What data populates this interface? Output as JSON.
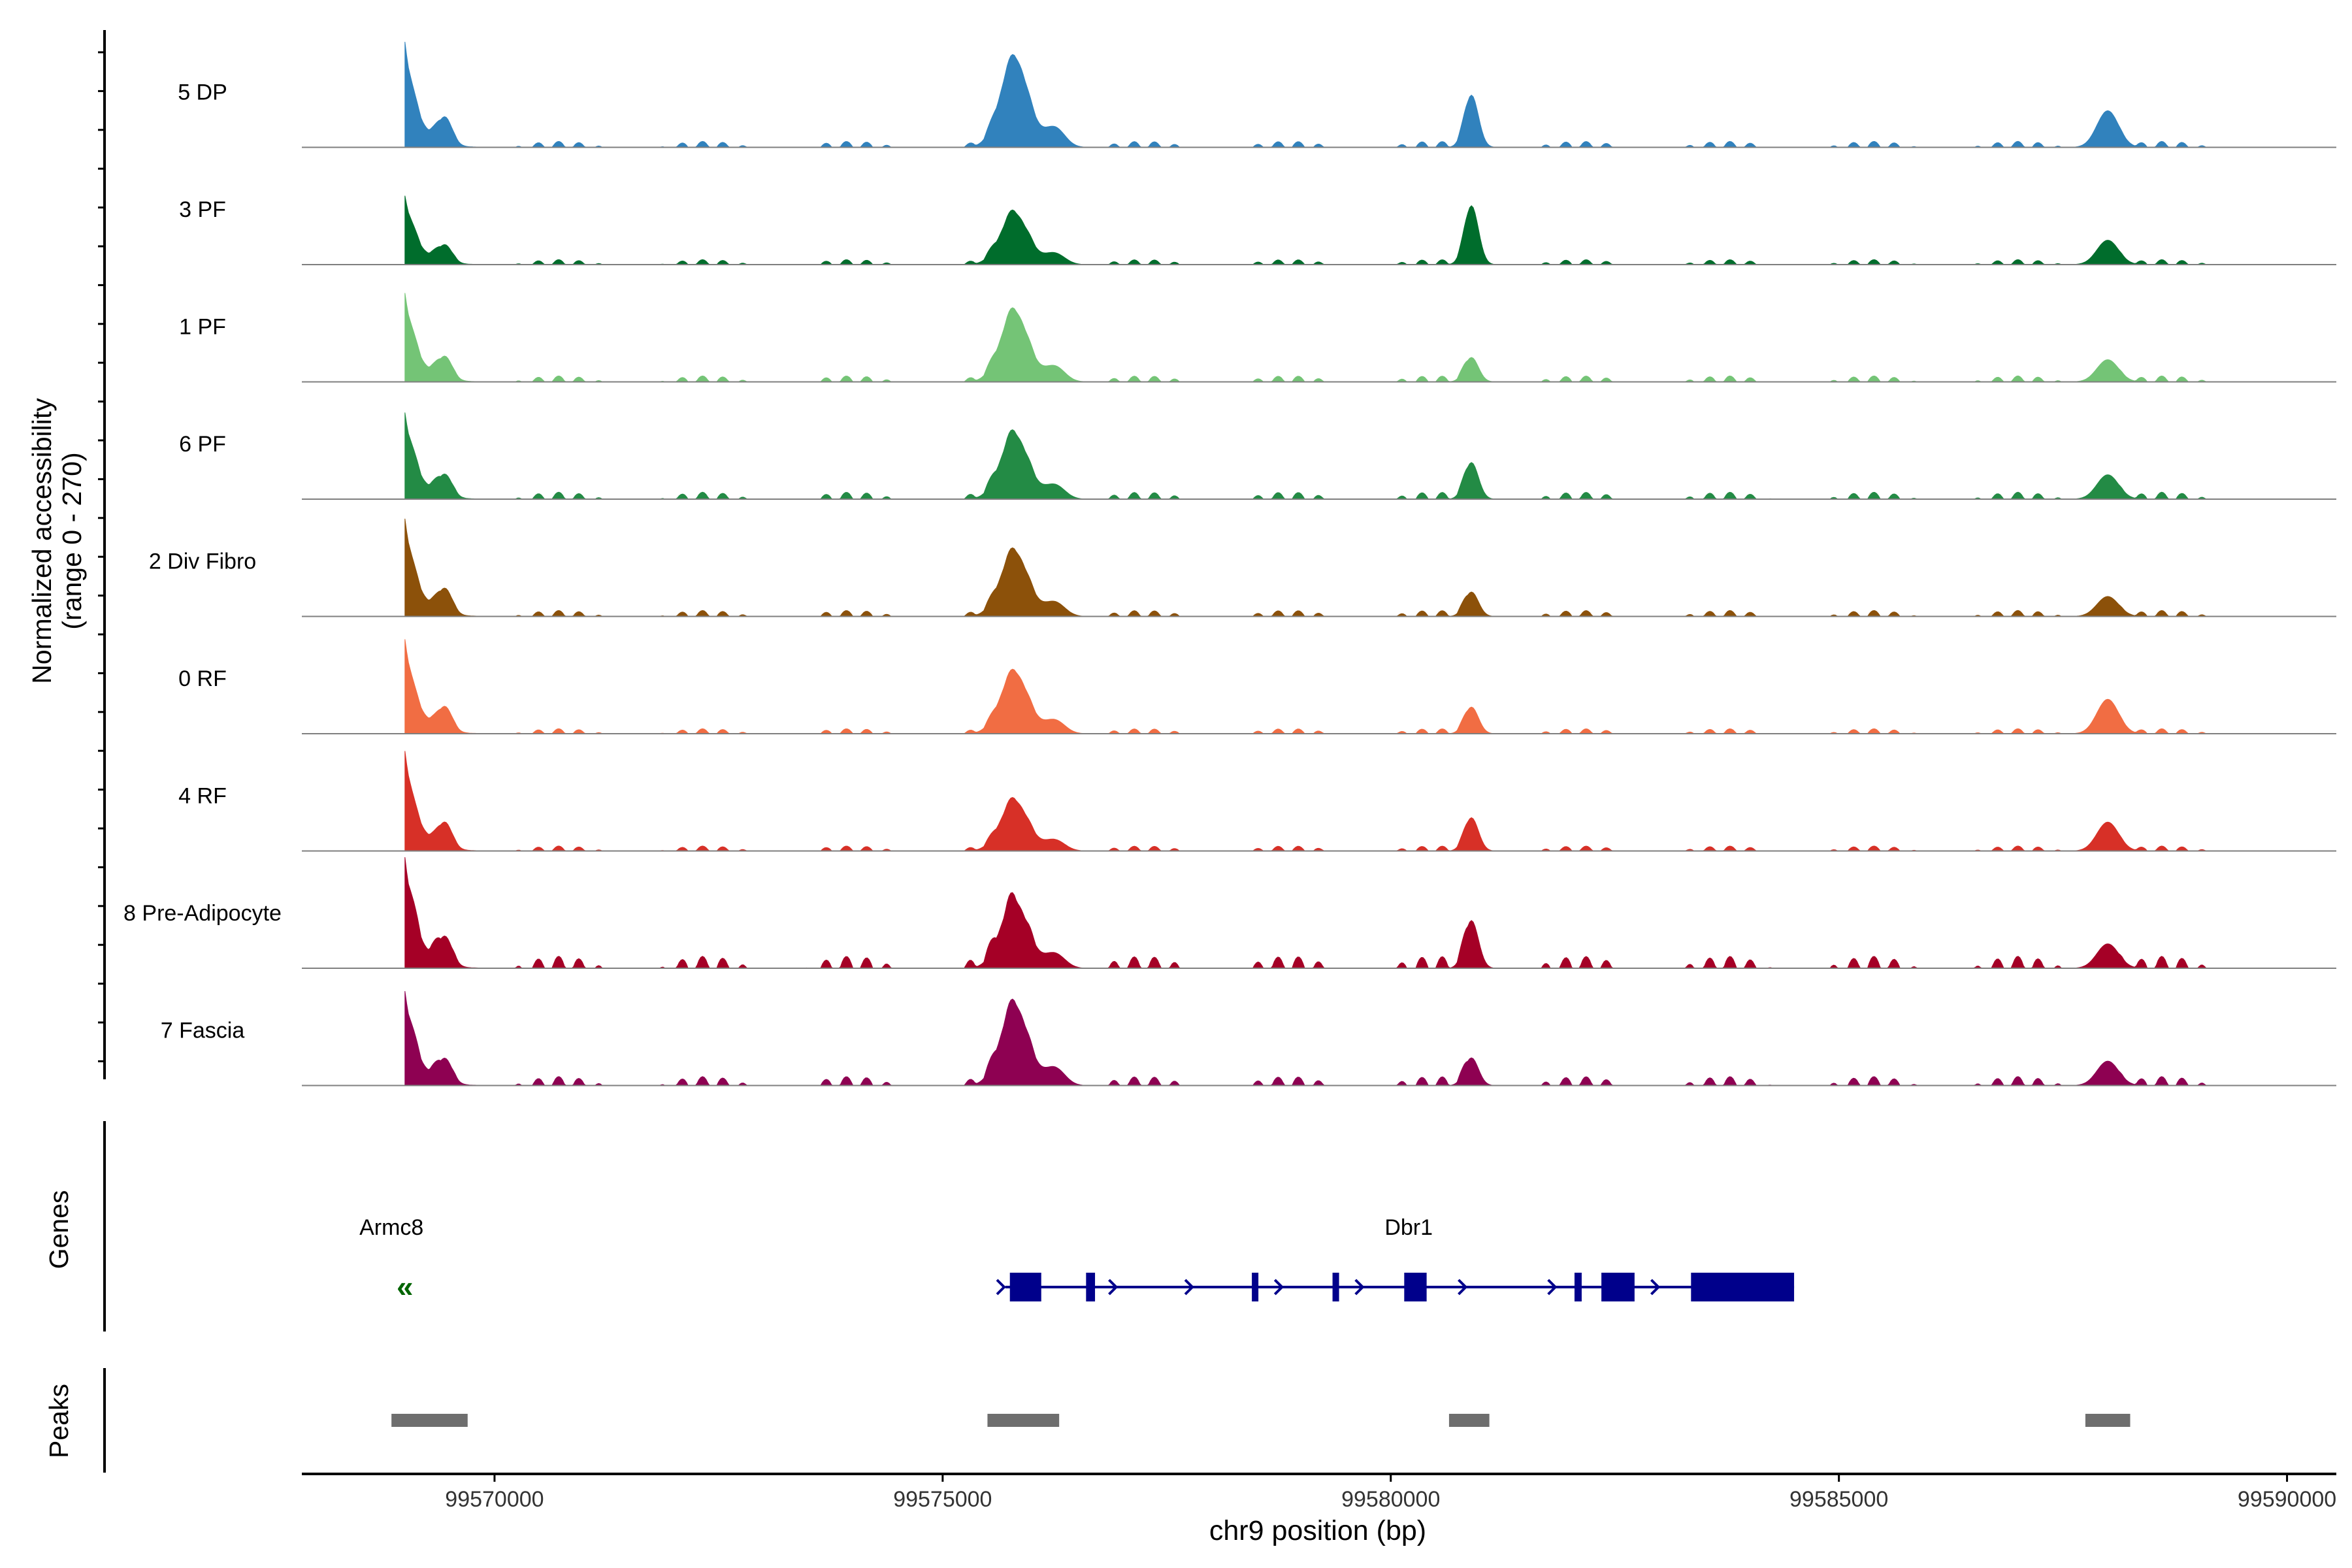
{
  "chart_data": {
    "type": "area",
    "title": "",
    "ylabel_line1": "Normalized accessibility",
    "ylabel_line2": "(range 0 - 270)",
    "y_range": [
      0,
      270
    ],
    "xlabel": "chr9 position (bp)",
    "xlim": [
      99567850,
      99590550
    ],
    "xticks": [
      99570000,
      99575000,
      99580000,
      99585000,
      99590000
    ],
    "xtick_labels": [
      "99570000",
      "99575000",
      "99580000",
      "99585000",
      "99590000"
    ],
    "peak_centers": [
      99569000,
      99575800,
      99580900,
      99588000
    ],
    "tracks": [
      {
        "name": "5 DP",
        "color": "#3182bd",
        "heights": [
          0.95,
          0.8,
          0.47,
          0.33
        ],
        "noise": 0.06
      },
      {
        "name": "3 PF",
        "color": "#006d2c",
        "heights": [
          0.62,
          0.46,
          0.53,
          0.22
        ],
        "noise": 0.05
      },
      {
        "name": "1 PF",
        "color": "#74c476",
        "heights": [
          0.8,
          0.63,
          0.22,
          0.2
        ],
        "noise": 0.06
      },
      {
        "name": "6 PF",
        "color": "#238b45",
        "heights": [
          0.78,
          0.58,
          0.33,
          0.22
        ],
        "noise": 0.07
      },
      {
        "name": "2 Div Fibro",
        "color": "#8c510a",
        "heights": [
          0.88,
          0.58,
          0.22,
          0.18
        ],
        "noise": 0.06
      },
      {
        "name": "0 RF",
        "color": "#f16d43",
        "heights": [
          0.85,
          0.55,
          0.24,
          0.31
        ],
        "noise": 0.05
      },
      {
        "name": "4 RF",
        "color": "#d73027",
        "heights": [
          0.9,
          0.45,
          0.3,
          0.26
        ],
        "noise": 0.05
      },
      {
        "name": "8 Pre-Adipocyte",
        "color": "#a50026",
        "heights": [
          1.0,
          0.6,
          0.43,
          0.22
        ],
        "noise": 0.12
      },
      {
        "name": "7 Fascia",
        "color": "#8e0152",
        "heights": [
          0.85,
          0.72,
          0.25,
          0.22
        ],
        "noise": 0.09
      }
    ],
    "genes_label": "Genes",
    "genes": [
      {
        "name": "Armc8",
        "label_x": 99568850,
        "strand": "-",
        "glyph": "«",
        "glyph_x": 99569000,
        "color": "#006400"
      },
      {
        "name": "Dbr1",
        "label_x": 99580200,
        "strand": "+",
        "start": 99575700,
        "end": 99584500,
        "color": "#00008b",
        "exons": [
          [
            99575750,
            99576100
          ],
          [
            99576600,
            99576700
          ],
          [
            99578450,
            99578520
          ],
          [
            99579350,
            99579420
          ],
          [
            99580150,
            99580400
          ],
          [
            99582050,
            99582130
          ],
          [
            99582350,
            99582720
          ],
          [
            99583350,
            99584500
          ]
        ]
      }
    ],
    "peaks_label": "Peaks",
    "peaks": [
      [
        99568850,
        99569700
      ],
      [
        99575500,
        99576300
      ],
      [
        99580650,
        99581100
      ],
      [
        99587750,
        99588250
      ]
    ]
  }
}
